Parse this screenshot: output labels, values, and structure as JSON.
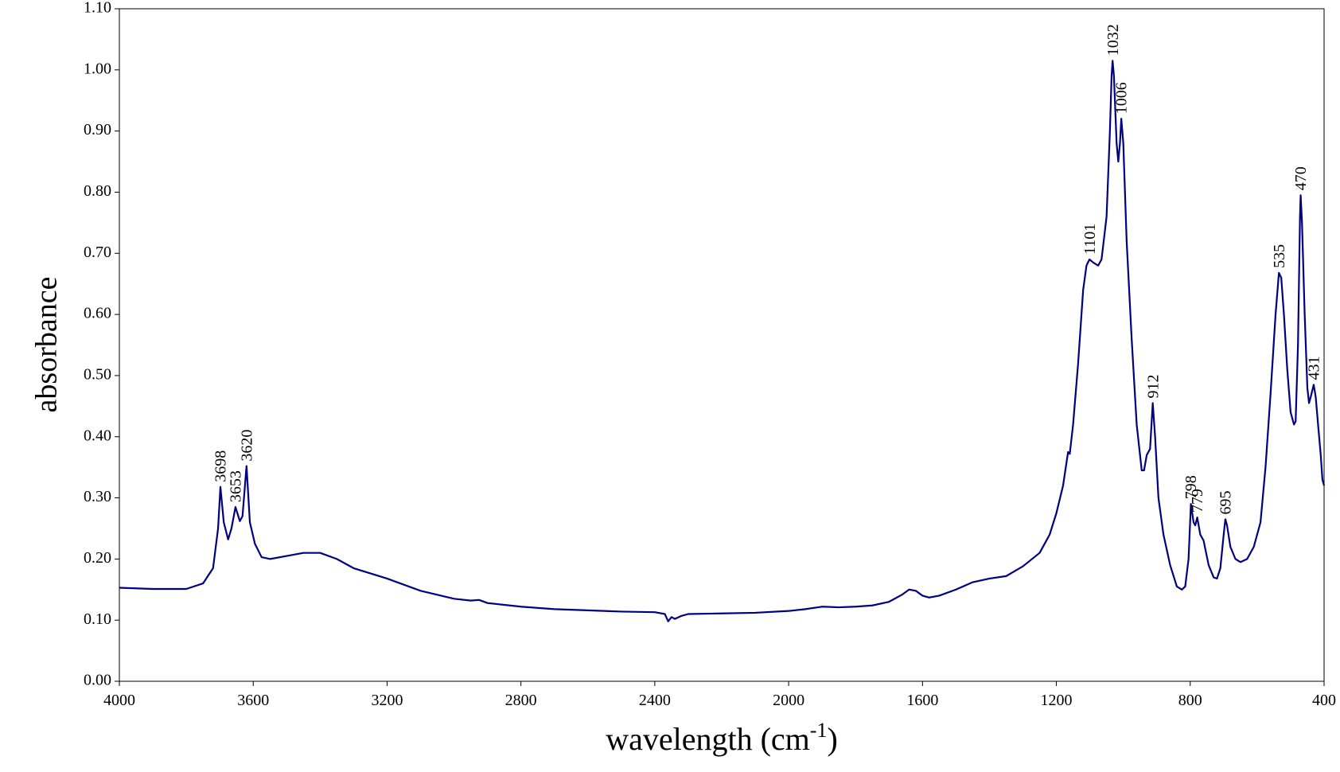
{
  "chart_data": {
    "type": "line",
    "y_label": "absorbance",
    "x_label": {
      "main": "wavelength (cm",
      "superscript": "-1",
      "close": ")"
    },
    "color": "#000080",
    "xlim": [
      4000,
      400
    ],
    "ylim": [
      0,
      1.1
    ],
    "xticks": [
      4000,
      3600,
      3200,
      2800,
      2400,
      2000,
      1600,
      1200,
      800,
      400
    ],
    "yticks": [
      {
        "value": 0,
        "label": "0.00"
      },
      {
        "value": 0.1,
        "label": "0.10"
      },
      {
        "value": 0.2,
        "label": "0.20"
      },
      {
        "value": 0.3,
        "label": "0.30"
      },
      {
        "value": 0.4,
        "label": "0.40"
      },
      {
        "value": 0.5,
        "label": "0.50"
      },
      {
        "value": 0.6,
        "label": "0.60"
      },
      {
        "value": 0.7,
        "label": "0.70"
      },
      {
        "value": 0.8,
        "label": "0.80"
      },
      {
        "value": 0.9,
        "label": "0.90"
      },
      {
        "value": 1,
        "label": "1.00"
      },
      {
        "value": 1.1,
        "label": "1.10"
      }
    ],
    "grid": false,
    "x": [
      4000,
      3900,
      3800,
      3750,
      3720,
      3705,
      3698,
      3688,
      3675,
      3665,
      3653,
      3640,
      3632,
      3620,
      3610,
      3595,
      3575,
      3550,
      3500,
      3450,
      3400,
      3350,
      3300,
      3200,
      3100,
      3000,
      2950,
      2925,
      2900,
      2800,
      2700,
      2600,
      2500,
      2400,
      2370,
      2360,
      2350,
      2340,
      2320,
      2300,
      2200,
      2100,
      2000,
      1950,
      1900,
      1850,
      1800,
      1750,
      1700,
      1660,
      1640,
      1620,
      1600,
      1580,
      1550,
      1500,
      1450,
      1400,
      1350,
      1300,
      1250,
      1220,
      1200,
      1180,
      1165,
      1160,
      1150,
      1135,
      1120,
      1110,
      1101,
      1090,
      1075,
      1065,
      1050,
      1040,
      1035,
      1032,
      1028,
      1020,
      1015,
      1010,
      1006,
      1000,
      990,
      975,
      960,
      945,
      938,
      930,
      920,
      912,
      905,
      895,
      880,
      860,
      840,
      825,
      815,
      805,
      798,
      790,
      785,
      779,
      770,
      760,
      745,
      730,
      720,
      710,
      700,
      695,
      690,
      680,
      665,
      650,
      630,
      610,
      590,
      575,
      560,
      545,
      535,
      528,
      520,
      510,
      500,
      490,
      485,
      478,
      472,
      470,
      466,
      458,
      450,
      445,
      440,
      431,
      425,
      418,
      410,
      405,
      400
    ],
    "values": [
      0.153,
      0.151,
      0.151,
      0.16,
      0.185,
      0.25,
      0.318,
      0.26,
      0.232,
      0.25,
      0.285,
      0.262,
      0.27,
      0.352,
      0.26,
      0.225,
      0.203,
      0.2,
      0.205,
      0.21,
      0.21,
      0.2,
      0.185,
      0.168,
      0.148,
      0.135,
      0.132,
      0.133,
      0.128,
      0.122,
      0.118,
      0.116,
      0.114,
      0.113,
      0.11,
      0.098,
      0.105,
      0.102,
      0.107,
      0.11,
      0.111,
      0.112,
      0.115,
      0.118,
      0.122,
      0.121,
      0.122,
      0.124,
      0.13,
      0.142,
      0.15,
      0.148,
      0.14,
      0.137,
      0.14,
      0.15,
      0.162,
      0.168,
      0.172,
      0.188,
      0.21,
      0.24,
      0.275,
      0.32,
      0.375,
      0.372,
      0.42,
      0.52,
      0.64,
      0.68,
      0.69,
      0.685,
      0.68,
      0.69,
      0.76,
      0.9,
      0.99,
      1.015,
      0.99,
      0.88,
      0.85,
      0.88,
      0.92,
      0.88,
      0.72,
      0.56,
      0.42,
      0.345,
      0.345,
      0.37,
      0.38,
      0.455,
      0.4,
      0.3,
      0.24,
      0.19,
      0.155,
      0.15,
      0.155,
      0.2,
      0.29,
      0.26,
      0.255,
      0.268,
      0.24,
      0.23,
      0.19,
      0.17,
      0.168,
      0.185,
      0.24,
      0.265,
      0.255,
      0.22,
      0.2,
      0.195,
      0.2,
      0.22,
      0.26,
      0.35,
      0.47,
      0.6,
      0.668,
      0.66,
      0.6,
      0.51,
      0.44,
      0.42,
      0.425,
      0.55,
      0.76,
      0.795,
      0.75,
      0.6,
      0.48,
      0.455,
      0.465,
      0.485,
      0.465,
      0.42,
      0.37,
      0.33,
      0.32
    ],
    "annotations": [
      {
        "text": "3698",
        "x": 3698,
        "y": 0.318
      },
      {
        "text": "3653",
        "x": 3653,
        "y": 0.285
      },
      {
        "text": "3620",
        "x": 3620,
        "y": 0.352
      },
      {
        "text": "1101",
        "x": 1101,
        "y": 0.69
      },
      {
        "text": "1032",
        "x": 1032,
        "y": 1.015
      },
      {
        "text": "1006",
        "x": 1006,
        "y": 0.92
      },
      {
        "text": "912",
        "x": 912,
        "y": 0.455
      },
      {
        "text": "798",
        "x": 798,
        "y": 0.29
      },
      {
        "text": "779",
        "x": 779,
        "y": 0.268
      },
      {
        "text": "695",
        "x": 695,
        "y": 0.265
      },
      {
        "text": "535",
        "x": 535,
        "y": 0.668
      },
      {
        "text": "470",
        "x": 470,
        "y": 0.795
      },
      {
        "text": "431",
        "x": 431,
        "y": 0.485
      }
    ]
  }
}
